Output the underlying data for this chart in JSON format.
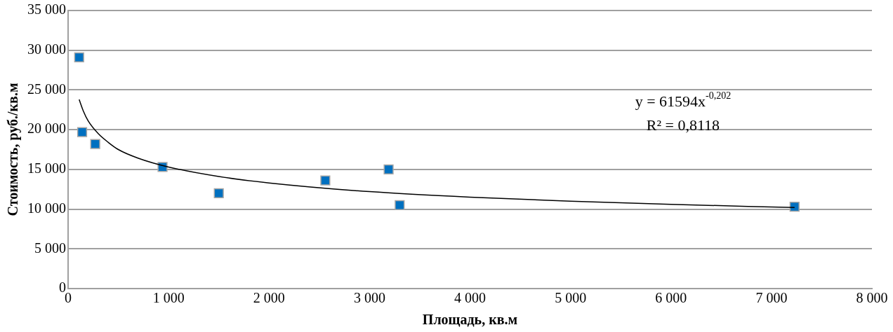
{
  "chart_data": {
    "type": "scatter",
    "xlabel": "Площадь, кв.м",
    "ylabel": "Стоимость, руб./кв.м",
    "series": [
      {
        "type": "scatter",
        "color": "#0070c0",
        "marker": "square",
        "x": [
          110,
          140,
          270,
          940,
          1500,
          2560,
          3190,
          3300,
          7230
        ],
        "values": [
          29100,
          19700,
          18200,
          15300,
          12000,
          13600,
          15000,
          10500,
          10300
        ]
      },
      {
        "type": "line",
        "color": "#000000",
        "marker": "none",
        "line_style": "solid",
        "x": [
          110,
          150,
          200,
          300,
          400,
          500,
          700,
          1000,
          1500,
          2000,
          3000,
          4000,
          5000,
          6000,
          7230
        ],
        "values": [
          23800,
          22400,
          21100,
          19500,
          18400,
          17500,
          16400,
          15300,
          14100,
          13300,
          12200,
          11500,
          11000,
          10600,
          10200
        ]
      }
    ],
    "xlim": [
      0,
      8000
    ],
    "xticks": [
      0,
      {
        "value": 1000,
        "label": "1 000"
      },
      {
        "value": 2000,
        "label": "2 000"
      },
      {
        "value": 3000,
        "label": "3 000"
      },
      {
        "value": 4000,
        "label": "4 000"
      },
      {
        "value": 5000,
        "label": "5 000"
      },
      {
        "value": 6000,
        "label": "6 000"
      },
      {
        "value": 7000,
        "label": "7 000"
      },
      {
        "value": 8000,
        "label": "8 000"
      }
    ],
    "ylim": [
      0,
      35000
    ],
    "yticks": [
      0,
      {
        "value": 5000,
        "label": "5 000"
      },
      {
        "value": 10000,
        "label": "10 000"
      },
      {
        "value": 15000,
        "label": "15 000"
      },
      {
        "value": 20000,
        "label": "20 000"
      },
      {
        "value": 25000,
        "label": "25 000"
      },
      {
        "value": 30000,
        "label": "30 000"
      },
      {
        "value": 35000,
        "label": "35 000"
      }
    ],
    "grid": "y",
    "legend": false,
    "annotations": [
      "y = 61594x$^{-0,202}$",
      "R² = 0,8118"
    ]
  }
}
